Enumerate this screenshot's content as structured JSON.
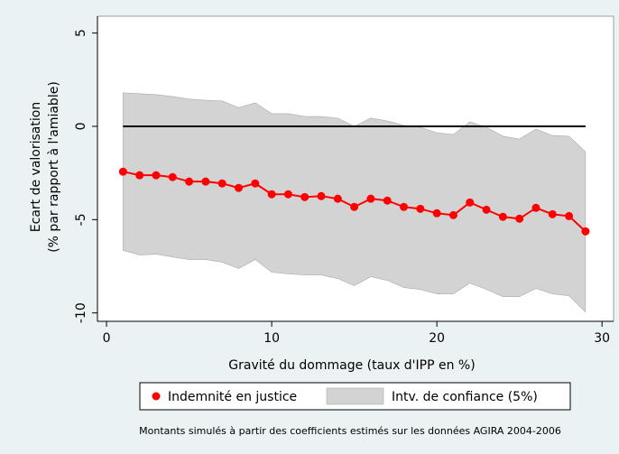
{
  "chart_data": {
    "type": "line",
    "x": [
      1,
      2,
      3,
      4,
      5,
      6,
      7,
      8,
      9,
      10,
      11,
      12,
      13,
      14,
      15,
      16,
      17,
      18,
      19,
      20,
      21,
      22,
      23,
      24,
      25,
      26,
      27,
      28,
      29
    ],
    "series": [
      {
        "name": "Indemnité en justice",
        "color": "#ff0000",
        "values": [
          -2.43,
          -2.62,
          -2.62,
          -2.72,
          -2.96,
          -2.96,
          -3.06,
          -3.3,
          -3.06,
          -3.64,
          -3.64,
          -3.79,
          -3.74,
          -3.88,
          -4.32,
          -3.88,
          -3.98,
          -4.32,
          -4.42,
          -4.66,
          -4.76,
          -4.08,
          -4.47,
          -4.85,
          -4.95,
          -4.37,
          -4.71,
          -4.81,
          -5.63
        ]
      }
    ],
    "band": {
      "name": "Intv. de confiance (5%)",
      "color": "#d3d3d3",
      "upper": [
        1.8,
        1.75,
        1.7,
        1.6,
        1.46,
        1.4,
        1.36,
        1.0,
        1.26,
        0.68,
        0.68,
        0.53,
        0.53,
        0.44,
        0,
        0.44,
        0.29,
        0.05,
        -0.05,
        -0.34,
        -0.44,
        0.24,
        -0.05,
        -0.53,
        -0.68,
        -0.15,
        -0.49,
        -0.53,
        -1.36
      ],
      "lower": [
        -6.65,
        -6.9,
        -6.85,
        -7.0,
        -7.14,
        -7.14,
        -7.28,
        -7.62,
        -7.14,
        -7.82,
        -7.91,
        -7.96,
        -7.96,
        -8.16,
        -8.54,
        -8.06,
        -8.25,
        -8.64,
        -8.74,
        -8.98,
        -8.98,
        -8.4,
        -8.74,
        -9.13,
        -9.13,
        -8.69,
        -8.98,
        -9.08,
        -9.95
      ]
    },
    "yline": 0,
    "xlim": [
      -0.55,
      30.7
    ],
    "ylim": [
      -10.45,
      5.9
    ],
    "xticks": [
      0,
      10,
      20,
      30
    ],
    "yticks": [
      -10,
      -5,
      0,
      5
    ],
    "x_label": "Gravité du dommage (taux d'IPP en %)",
    "y_label": [
      "Ecart de valorisation",
      "(% par rapport à l'amiable)"
    ],
    "note": "Montants simulés à partir des coefficients estimés sur les données AGIRA 2004-2006"
  }
}
